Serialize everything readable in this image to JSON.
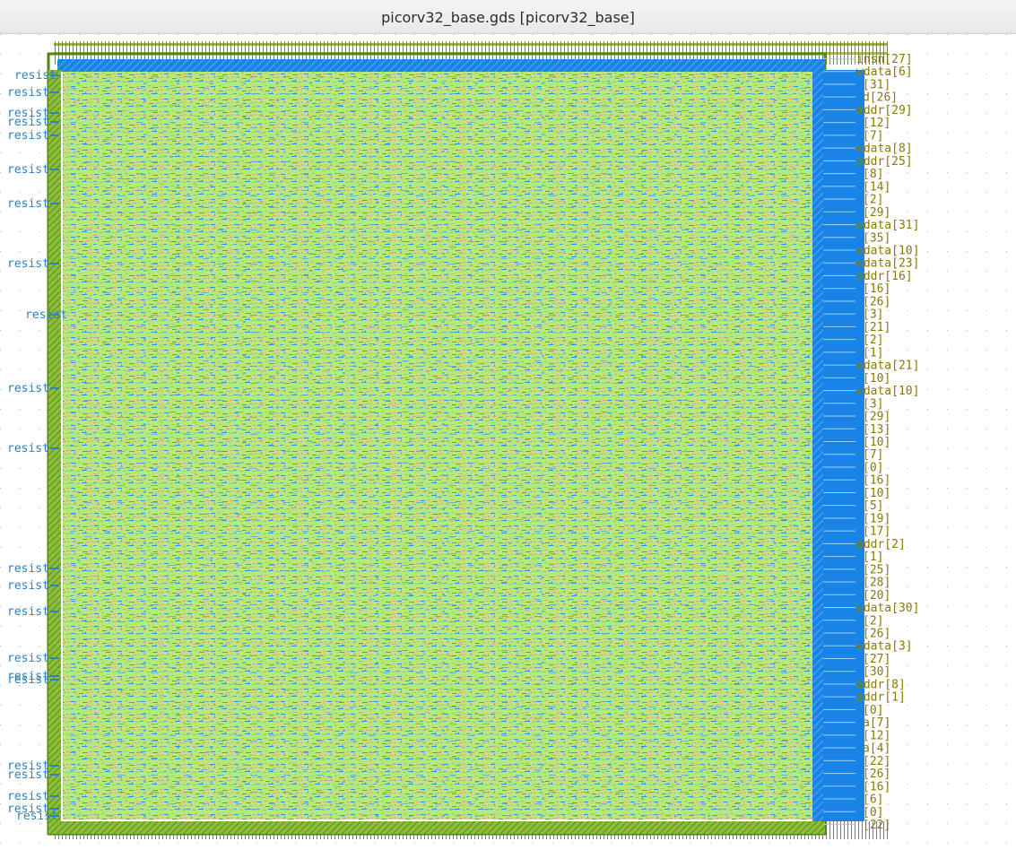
{
  "window": {
    "title": "picorv32_base.gds [picorv32_base]"
  },
  "colors": {
    "core_fill": "#b6e87a",
    "core_speckle_blue": "#2f8be0",
    "core_speckle_red": "#d9a090",
    "io_ring_blue": "#1a84e6",
    "frame_green": "#4e8a10",
    "label_olive": "#8a7a00",
    "label_blue": "#2b82c8",
    "grid_dot": "#b0b0b0"
  },
  "left_labels": [
    "resist",
    "resist",
    "resist",
    "resist",
    "resist",
    "resist",
    "resist",
    "resist",
    "resist",
    "resist",
    "resist",
    "resist",
    "resist",
    "resist",
    "resist",
    "resist",
    "resist",
    "resist",
    "resist",
    "resist",
    "resist",
    "resist",
    "resist",
    "resist"
  ],
  "right_labels": [
    "insn[27]",
    "wdata[6]",
    "[31]",
    "d[26]",
    "addr[29]",
    "[12]",
    "[7]",
    "wdata[8]",
    "addr[25]",
    "[8]",
    "[14]",
    "[2]",
    "[29]",
    "wdata[31]",
    "[35]",
    "wdata[10]",
    "wdata[23]",
    "addr[16]",
    "[16]",
    "[26]",
    "[3]",
    "[21]",
    "[2]",
    "[1]",
    "wdata[21]",
    "[10]",
    "wdata[10]",
    "[3]",
    "[29]",
    "[13]",
    "[10]",
    "[7]",
    "[0]",
    "[16]",
    "[10]",
    "[5]",
    "[19]",
    "[17]",
    "addr[2]",
    "[1]",
    "[25]",
    "[28]",
    "[20]",
    "wdata[30]",
    "[2]",
    "[26]",
    "wdata[3]",
    "[27]",
    "[30]",
    "addr[8]",
    "addr[1]",
    "[0]",
    "a[7]",
    "[12]",
    "a[4]",
    "[22]",
    "[26]",
    "[16]",
    "[6]",
    "[0]",
    "[22]"
  ]
}
